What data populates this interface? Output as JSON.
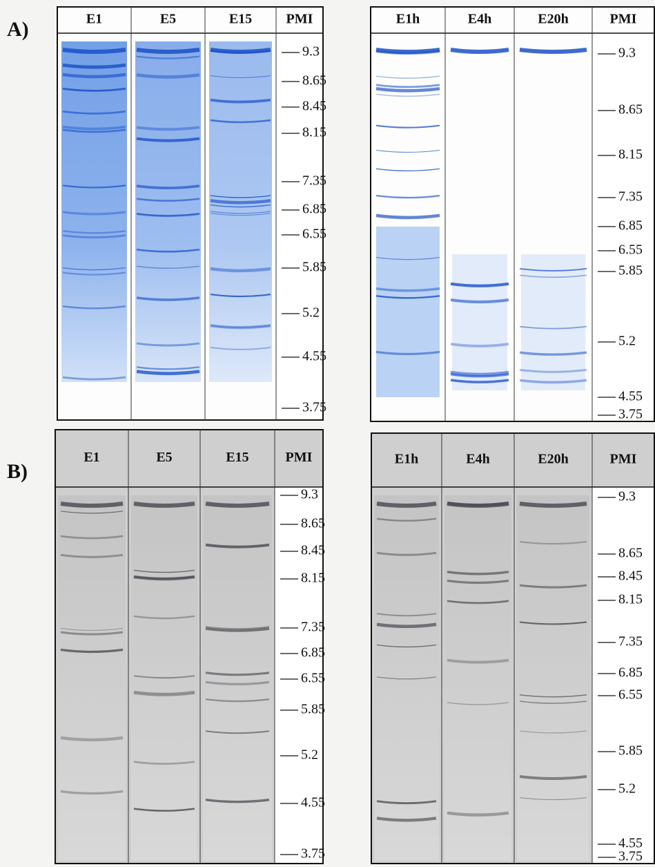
{
  "panels": [
    {
      "label": "A)",
      "gels": [
        {
          "lanes": [
            "E1",
            "E5",
            "E15"
          ],
          "marker_header": "PMI",
          "markers": [
            "9.3",
            "8.65",
            "8.45",
            "8.15",
            "7.35",
            "6.85",
            "6.55",
            "5.85",
            "5.2",
            "4.55",
            "3.75"
          ]
        },
        {
          "lanes": [
            "E1h",
            "E4h",
            "E20h"
          ],
          "marker_header": "PMI",
          "markers": [
            "9.3",
            "8.65",
            "8.15",
            "7.35",
            "6.85",
            "6.55",
            "5.85",
            "5.2",
            "4.55",
            "3.75"
          ]
        }
      ]
    },
    {
      "label": "B)",
      "gels": [
        {
          "lanes": [
            "E1",
            "E5",
            "E15"
          ],
          "marker_header": "PMI",
          "markers": [
            "9.3",
            "8.65",
            "8.45",
            "8.15",
            "7.35",
            "6.85",
            "6.55",
            "5.85",
            "5.2",
            "4.55",
            "3.75"
          ]
        },
        {
          "lanes": [
            "E1h",
            "E4h",
            "E20h"
          ],
          "marker_header": "PMI",
          "markers": [
            "9.3",
            "8.65",
            "8.45",
            "8.15",
            "7.35",
            "6.85",
            "6.55",
            "5.85",
            "5.2",
            "4.55",
            "3.75"
          ]
        }
      ]
    }
  ]
}
